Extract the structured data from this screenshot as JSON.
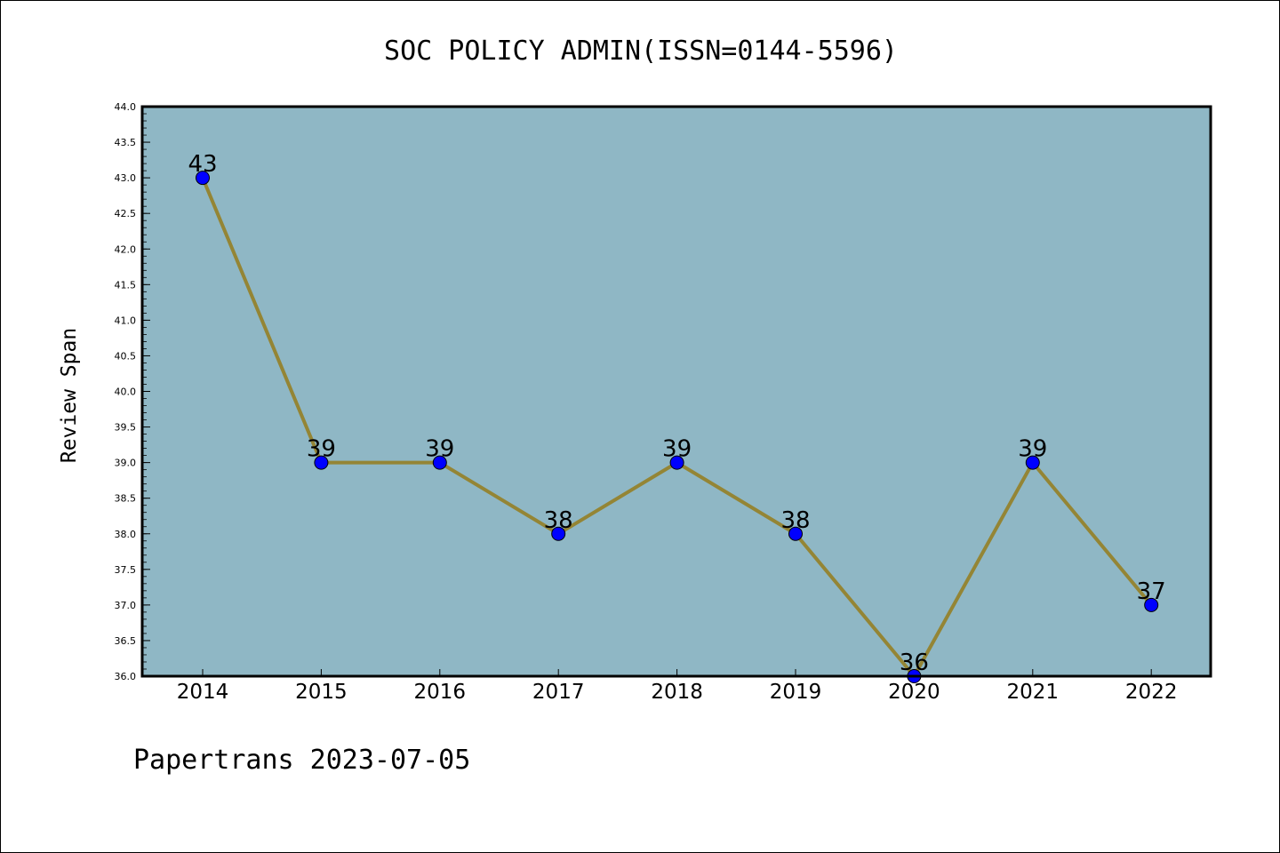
{
  "chart_data": {
    "type": "line",
    "title": "SOC POLICY ADMIN(ISSN=0144-5596)",
    "xlabel": "",
    "ylabel": "Review Span",
    "categories": [
      "2014",
      "2015",
      "2016",
      "2017",
      "2018",
      "2019",
      "2020",
      "2021",
      "2022"
    ],
    "values": [
      43,
      39,
      39,
      38,
      39,
      38,
      36,
      39,
      37
    ],
    "ylim": [
      36.0,
      44.0
    ],
    "yticks": [
      "36.0",
      "36.5",
      "37.0",
      "37.5",
      "38.0",
      "38.5",
      "39.0",
      "39.5",
      "40.0",
      "40.5",
      "41.0",
      "41.5",
      "42.0",
      "42.5",
      "43.0",
      "43.5",
      "44.0"
    ],
    "grid": false,
    "colors": {
      "plot_background": "#8fb7c5",
      "line": "#948535",
      "marker": "#0000ff"
    }
  },
  "footer": {
    "text": "Papertrans 2023-07-05"
  }
}
